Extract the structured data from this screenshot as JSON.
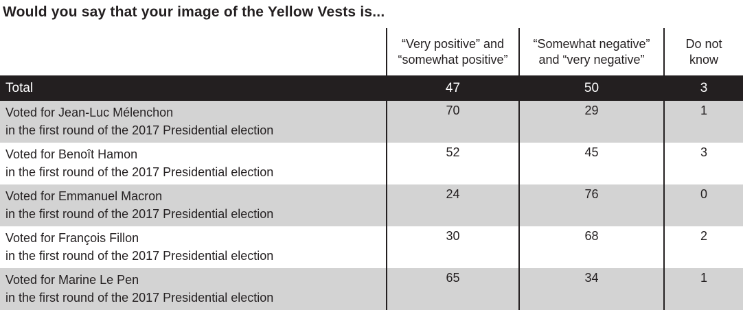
{
  "title": "Would you say that your image of the Yellow Vests is...",
  "header": {
    "col_positive": {
      "line1": "“Very positive” and",
      "line2": "“somewhat positive”"
    },
    "col_negative": {
      "line1": "“Somewhat negative”",
      "line2": "and “very negative”"
    },
    "col_dontknow": {
      "line1": "Do not",
      "line2": "know"
    }
  },
  "total": {
    "label": "Total",
    "values": [
      "47",
      "50",
      "3"
    ]
  },
  "rows": [
    {
      "name": "Voted for Jean-Luc Mélenchon",
      "detail": "in the first round of the 2017 Presidential election",
      "values": [
        "70",
        "29",
        "1"
      ]
    },
    {
      "name": "Voted for Benoît Hamon",
      "detail": "in the first round of the 2017 Presidential election",
      "values": [
        "52",
        "45",
        "3"
      ]
    },
    {
      "name": "Voted for Emmanuel Macron",
      "detail": "in the first round of the 2017 Presidential election",
      "values": [
        "24",
        "76",
        "0"
      ]
    },
    {
      "name": "Voted for François Fillon",
      "detail": "in the first round of the 2017 Presidential election",
      "values": [
        "30",
        "68",
        "2"
      ]
    },
    {
      "name": "Voted for Marine Le Pen",
      "detail": "in the first round of the 2017 Presidential election",
      "values": [
        "65",
        "34",
        "1"
      ]
    }
  ],
  "colors": {
    "total_row_bg": "#231f20",
    "total_row_text": "#ffffff",
    "alt_row_bg": "#d3d3d3",
    "divider": "#231f20",
    "text": "#231f20"
  },
  "chart_data": {
    "type": "table",
    "title": "Would you say that your image of the Yellow Vests is...",
    "columns": [
      "“Very positive” and “somewhat positive”",
      "“Somewhat negative” and “very negative”",
      "Do not know"
    ],
    "categories": [
      "Total",
      "Voted for Jean-Luc Mélenchon in the first round of the 2017 Presidential election",
      "Voted for Benoît Hamon in the first round of the 2017 Presidential election",
      "Voted for Emmanuel Macron in the first round of the 2017 Presidential election",
      "Voted for François Fillon in the first round of the 2017 Presidential election",
      "Voted for Marine Le Pen in the first round of the 2017 Presidential election"
    ],
    "series": [
      {
        "name": "“Very positive” and “somewhat positive”",
        "values": [
          47,
          70,
          52,
          24,
          30,
          65
        ]
      },
      {
        "name": "“Somewhat negative” and “very negative”",
        "values": [
          50,
          29,
          45,
          76,
          68,
          34
        ]
      },
      {
        "name": "Do not know",
        "values": [
          3,
          1,
          3,
          0,
          2,
          1
        ]
      }
    ]
  }
}
